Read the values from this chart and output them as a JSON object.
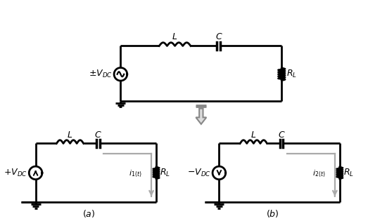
{
  "bg_color": "#ffffff",
  "line_color": "#000000",
  "line_width": 2.0,
  "fig_width": 5.5,
  "fig_height": 3.15,
  "dpi": 100,
  "font_size": 9
}
